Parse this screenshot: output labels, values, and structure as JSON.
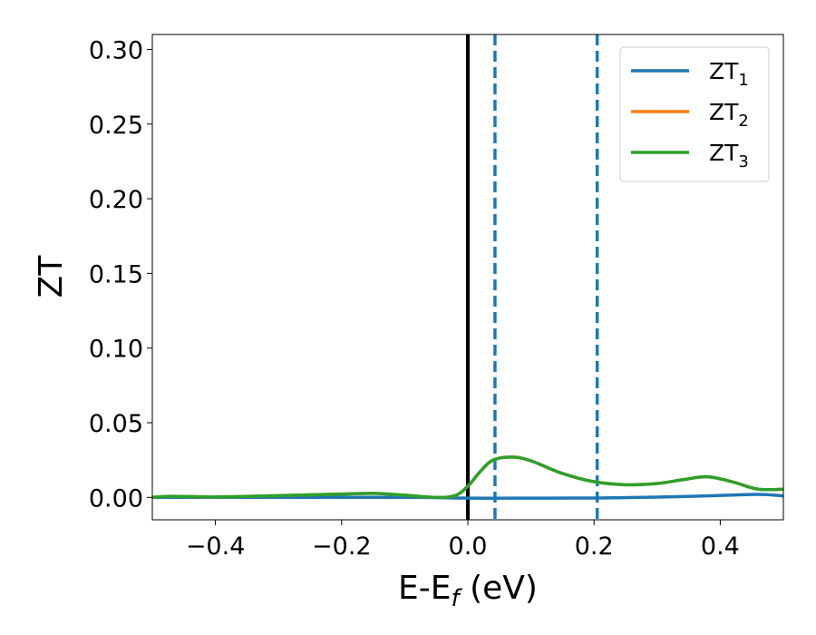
{
  "chart_data": {
    "type": "line",
    "xlabel": {
      "base": "E-E",
      "sub": "f",
      "suffix": " (eV)"
    },
    "ylabel": "ZT",
    "xlim": [
      -0.5,
      0.5
    ],
    "ylim": [
      -0.015,
      0.31
    ],
    "xticks": [
      -0.4,
      -0.2,
      0.0,
      0.2,
      0.4
    ],
    "xtick_labels": [
      "−0.4",
      "−0.2",
      "0.0",
      "0.2",
      "0.4"
    ],
    "yticks": [
      0.0,
      0.05,
      0.1,
      0.15,
      0.2,
      0.25,
      0.3
    ],
    "ytick_labels": [
      "0.00",
      "0.05",
      "0.10",
      "0.15",
      "0.20",
      "0.25",
      "0.30"
    ],
    "grid": false,
    "legend_position": "top-right",
    "vertical_lines": [
      {
        "x": 0.0,
        "style": "solid",
        "color": "#000000"
      },
      {
        "x": 0.043,
        "style": "dashed",
        "color": "#1f77b4"
      },
      {
        "x": 0.205,
        "style": "dashed",
        "color": "#1f77b4"
      }
    ],
    "series": [
      {
        "name": "ZT",
        "name_sub": "1",
        "color": "#1f77b4",
        "x": [
          -0.5,
          -0.3,
          -0.1,
          0.0,
          0.1,
          0.2,
          0.3,
          0.38,
          0.46,
          0.5
        ],
        "y": [
          0.0,
          0.0,
          0.0,
          -0.0005,
          -0.0005,
          -0.0004,
          0.0002,
          0.001,
          0.002,
          0.001
        ]
      },
      {
        "name": "ZT",
        "name_sub": "2",
        "color": "#ff7f0e",
        "x": [
          -0.5,
          -0.47,
          -0.4,
          -0.3,
          -0.2,
          -0.15,
          -0.1,
          -0.05,
          -0.02,
          0.0,
          0.02,
          0.04,
          0.07,
          0.1,
          0.15,
          0.2,
          0.25,
          0.3,
          0.34,
          0.38,
          0.42,
          0.46,
          0.5
        ],
        "y": [
          0.0,
          0.0007,
          0.0003,
          0.0012,
          0.0022,
          0.0027,
          0.0015,
          0.0,
          0.0012,
          0.0075,
          0.0175,
          0.025,
          0.027,
          0.0245,
          0.016,
          0.0105,
          0.0085,
          0.0093,
          0.0118,
          0.0138,
          0.0103,
          0.0055,
          0.0055
        ]
      },
      {
        "name": "ZT",
        "name_sub": "3",
        "color": "#2ca02c",
        "x": [
          -0.5,
          -0.47,
          -0.4,
          -0.3,
          -0.2,
          -0.15,
          -0.1,
          -0.05,
          -0.02,
          0.0,
          0.02,
          0.04,
          0.07,
          0.1,
          0.15,
          0.2,
          0.25,
          0.3,
          0.34,
          0.38,
          0.42,
          0.46,
          0.5
        ],
        "y": [
          0.0,
          0.0007,
          0.0003,
          0.0012,
          0.0022,
          0.0027,
          0.0015,
          0.0,
          0.0012,
          0.0075,
          0.0175,
          0.025,
          0.027,
          0.0245,
          0.016,
          0.0105,
          0.0085,
          0.0093,
          0.0118,
          0.0138,
          0.0103,
          0.0055,
          0.0055
        ]
      }
    ]
  }
}
